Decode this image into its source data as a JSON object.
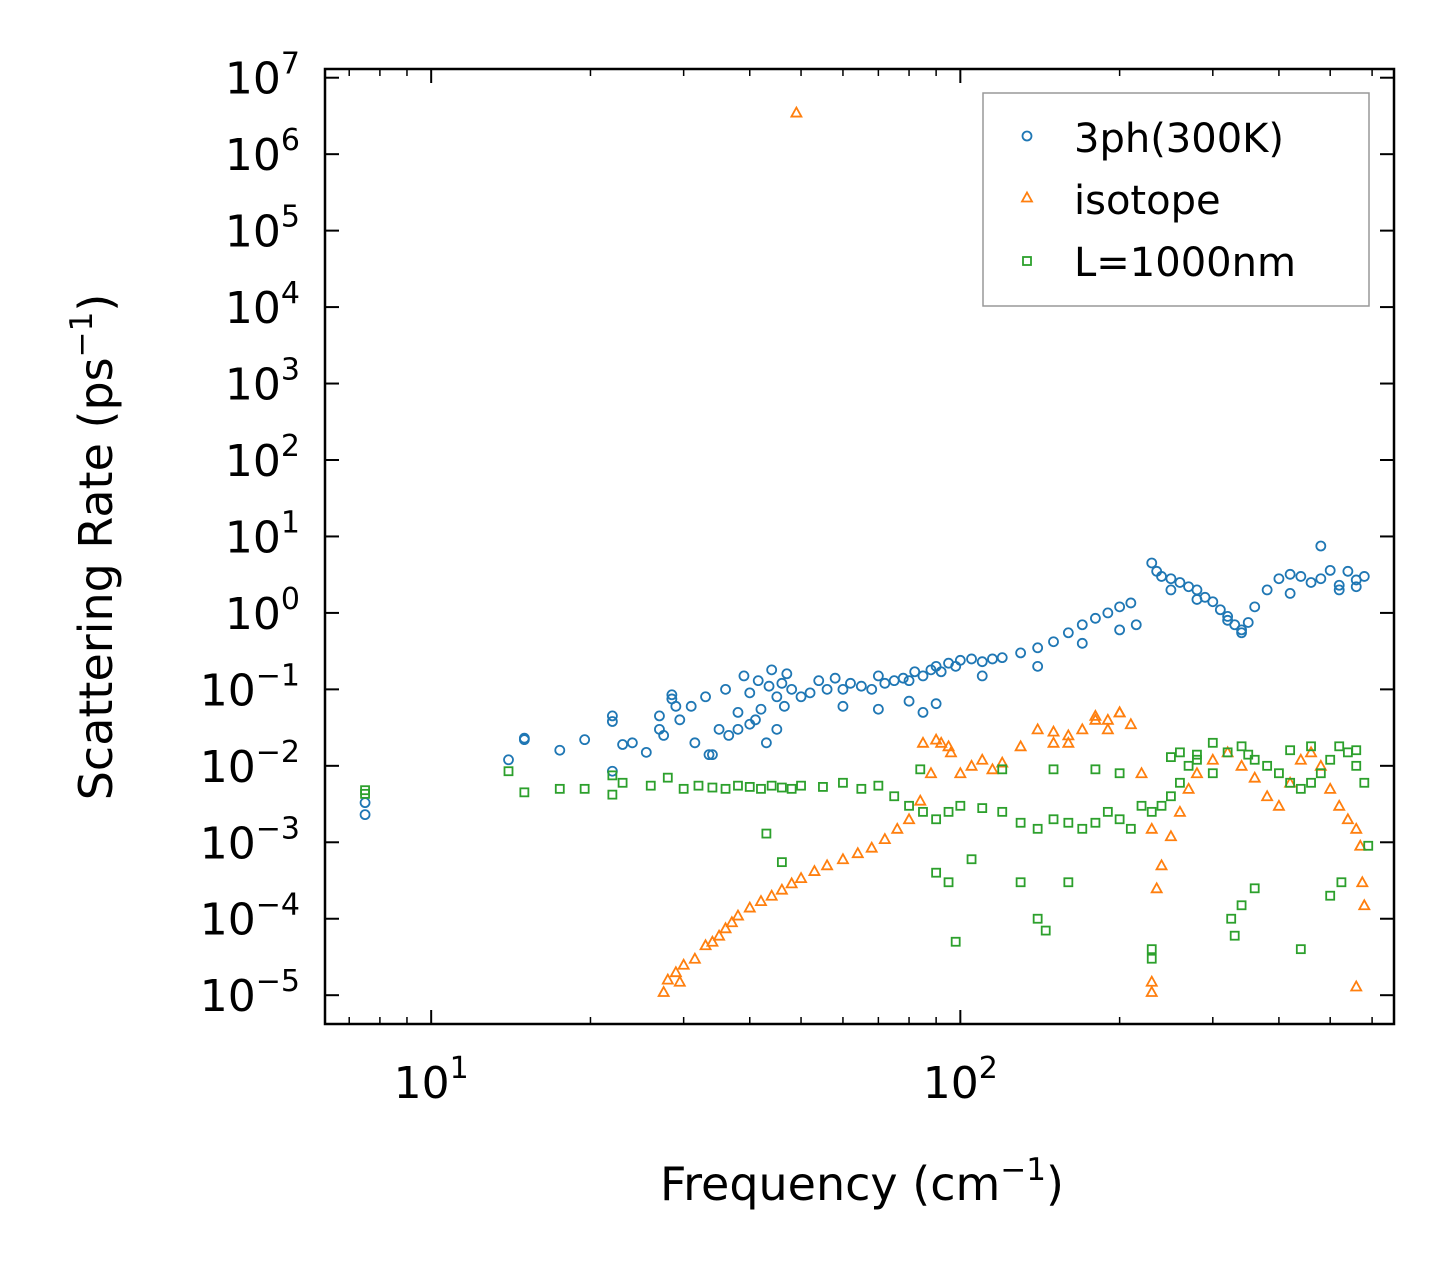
{
  "chart_data": {
    "type": "scatter",
    "xscale": "log",
    "yscale": "log",
    "xlim": [
      6.3,
      660
    ],
    "ylim": [
      4.2e-06,
      13000000.0
    ],
    "xlabel": "Frequency (cm",
    "xlabel_sup": "−1",
    "xlabel_end": ")",
    "ylabel": "Scattering Rate (ps",
    "ylabel_sup": "−1",
    "ylabel_end": ")",
    "x_ticks": [
      {
        "value": 10,
        "base": "10",
        "exp": "1"
      },
      {
        "value": 100,
        "base": "10",
        "exp": "2"
      }
    ],
    "y_ticks": [
      {
        "value": 1e-05,
        "base": "10",
        "exp": "−5"
      },
      {
        "value": 0.0001,
        "base": "10",
        "exp": "−4"
      },
      {
        "value": 0.001,
        "base": "10",
        "exp": "−3"
      },
      {
        "value": 0.01,
        "base": "10",
        "exp": "−2"
      },
      {
        "value": 0.1,
        "base": "10",
        "exp": "−1"
      },
      {
        "value": 1,
        "base": "10",
        "exp": "0"
      },
      {
        "value": 10,
        "base": "10",
        "exp": "1"
      },
      {
        "value": 100,
        "base": "10",
        "exp": "2"
      },
      {
        "value": 1000,
        "base": "10",
        "exp": "3"
      },
      {
        "value": 10000,
        "base": "10",
        "exp": "4"
      },
      {
        "value": 100000,
        "base": "10",
        "exp": "5"
      },
      {
        "value": 1000000,
        "base": "10",
        "exp": "6"
      },
      {
        "value": 10000000,
        "base": "10",
        "exp": "7"
      }
    ],
    "legend_position": "top-right",
    "series": [
      {
        "name": "3ph(300K)",
        "marker": "circle",
        "color": "#1f77b4",
        "x": [
          7.5,
          7.5,
          14,
          15,
          15,
          17.5,
          19.5,
          22,
          22,
          22,
          23,
          24,
          25.5,
          27,
          27,
          27.5,
          28.5,
          28.5,
          29,
          29.5,
          31,
          31.5,
          33,
          33.5,
          34,
          35,
          36,
          36.5,
          38,
          38,
          39,
          40,
          40,
          41,
          41.5,
          42,
          43,
          43.5,
          44,
          45,
          45,
          46,
          46.5,
          47,
          48,
          50,
          52,
          54,
          56,
          58,
          60,
          62,
          65,
          68,
          70,
          72,
          75,
          78,
          80,
          82,
          85,
          88,
          90,
          92,
          95,
          98,
          100,
          105,
          110,
          115,
          120,
          130,
          140,
          150,
          160,
          170,
          180,
          190,
          200,
          210,
          215,
          230,
          235,
          240,
          250,
          260,
          270,
          280,
          290,
          300,
          310,
          320,
          330,
          340,
          350,
          360,
          380,
          400,
          420,
          440,
          460,
          480,
          500,
          520,
          540,
          560,
          580,
          60,
          70,
          80,
          85,
          90,
          110,
          140,
          170,
          200,
          250,
          280,
          320,
          340,
          420,
          480,
          520,
          560
        ],
        "y": [
          0.0023,
          0.0033,
          0.012,
          0.022,
          0.023,
          0.016,
          0.022,
          0.045,
          0.038,
          0.0085,
          0.019,
          0.02,
          0.015,
          0.045,
          0.03,
          0.025,
          0.085,
          0.075,
          0.06,
          0.04,
          0.06,
          0.02,
          0.08,
          0.014,
          0.014,
          0.03,
          0.1,
          0.025,
          0.05,
          0.03,
          0.15,
          0.09,
          0.035,
          0.04,
          0.13,
          0.055,
          0.02,
          0.11,
          0.18,
          0.08,
          0.03,
          0.12,
          0.06,
          0.16,
          0.1,
          0.08,
          0.09,
          0.13,
          0.1,
          0.14,
          0.1,
          0.12,
          0.11,
          0.1,
          0.15,
          0.12,
          0.13,
          0.14,
          0.13,
          0.17,
          0.15,
          0.18,
          0.2,
          0.17,
          0.22,
          0.2,
          0.24,
          0.25,
          0.23,
          0.25,
          0.26,
          0.3,
          0.35,
          0.42,
          0.55,
          0.7,
          0.85,
          1.0,
          1.2,
          1.35,
          0.7,
          4.5,
          3.5,
          3.0,
          2.8,
          2.5,
          2.2,
          2.0,
          1.6,
          1.4,
          1.1,
          0.9,
          0.7,
          0.6,
          0.75,
          1.2,
          2.0,
          2.8,
          3.2,
          3.0,
          2.5,
          2.8,
          3.6,
          2.3,
          3.5,
          2.7,
          3.0,
          0.06,
          0.055,
          0.07,
          0.05,
          0.065,
          0.15,
          0.2,
          0.4,
          0.6,
          2.0,
          1.5,
          0.8,
          0.55,
          1.8,
          7.5,
          2.0,
          2.2
        ]
      },
      {
        "name": "isotope",
        "marker": "triangle",
        "color": "#ff7f0e",
        "x": [
          27.5,
          28,
          29,
          29.5,
          30,
          31.5,
          33,
          34,
          35,
          36,
          37,
          38,
          40,
          42,
          44,
          46,
          48,
          50,
          53,
          56,
          60,
          64,
          68,
          72,
          76,
          80,
          84,
          88,
          92,
          96,
          100,
          105,
          110,
          115,
          120,
          130,
          140,
          150,
          160,
          170,
          180,
          190,
          200,
          210,
          220,
          230,
          235,
          240,
          250,
          260,
          270,
          280,
          300,
          320,
          340,
          360,
          380,
          400,
          420,
          440,
          460,
          480,
          500,
          520,
          540,
          560,
          575,
          580,
          49,
          85,
          90,
          95,
          150,
          160,
          180,
          190,
          200,
          230,
          230,
          560,
          570
        ],
        "y": [
          1.1e-05,
          1.6e-05,
          2e-05,
          1.5e-05,
          2.5e-05,
          3e-05,
          4.5e-05,
          5e-05,
          6e-05,
          7.5e-05,
          9e-05,
          0.00011,
          0.00014,
          0.00017,
          0.0002,
          0.00024,
          0.00029,
          0.00034,
          0.00042,
          0.0005,
          0.0006,
          0.00072,
          0.00085,
          0.0011,
          0.0015,
          0.002,
          0.0035,
          0.008,
          0.02,
          0.015,
          0.008,
          0.01,
          0.012,
          0.009,
          0.011,
          0.018,
          0.03,
          0.02,
          0.025,
          0.03,
          0.04,
          0.03,
          0.05,
          0.035,
          0.008,
          0.0015,
          0.00025,
          0.0005,
          0.0012,
          0.0025,
          0.005,
          0.008,
          0.012,
          0.015,
          0.01,
          0.007,
          0.004,
          0.003,
          0.006,
          0.012,
          0.015,
          0.01,
          0.005,
          0.003,
          0.002,
          0.0015,
          0.0003,
          0.00015,
          3500000.0,
          0.02,
          0.022,
          0.018,
          0.028,
          0.02,
          0.045,
          0.04,
          0.05,
          1.5e-05,
          1.1e-05,
          1.3e-05,
          0.0009
        ]
      },
      {
        "name": "L=1000nm",
        "marker": "square",
        "color": "#2ca02c",
        "x": [
          7.5,
          7.5,
          14,
          15,
          17.5,
          19.5,
          22,
          22,
          23,
          26,
          28,
          30,
          32,
          34,
          36,
          38,
          40,
          42,
          44,
          46,
          48,
          50,
          55,
          60,
          65,
          70,
          75,
          80,
          85,
          90,
          95,
          100,
          110,
          120,
          130,
          140,
          150,
          160,
          170,
          180,
          190,
          200,
          210,
          220,
          230,
          240,
          250,
          260,
          270,
          280,
          300,
          320,
          340,
          360,
          380,
          400,
          420,
          440,
          460,
          480,
          500,
          520,
          540,
          560,
          580,
          43,
          46,
          98,
          140,
          145,
          160,
          230,
          230,
          325,
          330,
          340,
          360,
          440,
          500,
          525,
          120,
          150,
          180,
          200,
          250,
          260,
          280,
          300,
          350,
          420,
          460,
          560,
          590,
          84,
          90,
          95,
          105,
          130
        ],
        "y": [
          0.0043,
          0.0048,
          0.0085,
          0.0045,
          0.005,
          0.005,
          0.0075,
          0.0042,
          0.006,
          0.0055,
          0.007,
          0.005,
          0.0055,
          0.0052,
          0.005,
          0.0055,
          0.0053,
          0.005,
          0.0055,
          0.0052,
          0.005,
          0.0055,
          0.0053,
          0.006,
          0.005,
          0.0055,
          0.004,
          0.003,
          0.0025,
          0.002,
          0.0025,
          0.003,
          0.0028,
          0.0025,
          0.0018,
          0.0015,
          0.002,
          0.0018,
          0.0015,
          0.0018,
          0.0025,
          0.002,
          0.0015,
          0.003,
          0.0025,
          0.003,
          0.004,
          0.006,
          0.01,
          0.012,
          0.008,
          0.015,
          0.018,
          0.012,
          0.01,
          0.008,
          0.006,
          0.005,
          0.006,
          0.008,
          0.012,
          0.018,
          0.015,
          0.01,
          0.006,
          0.0013,
          0.00055,
          5e-05,
          0.0001,
          7e-05,
          0.0003,
          3e-05,
          4e-05,
          0.0001,
          6e-05,
          0.00015,
          0.00025,
          4e-05,
          0.0002,
          0.0003,
          0.009,
          0.009,
          0.009,
          0.008,
          0.013,
          0.015,
          0.014,
          0.02,
          0.014,
          0.016,
          0.018,
          0.016,
          0.0009,
          0.009,
          0.0004,
          0.0003,
          0.0006,
          0.0003
        ]
      }
    ]
  }
}
